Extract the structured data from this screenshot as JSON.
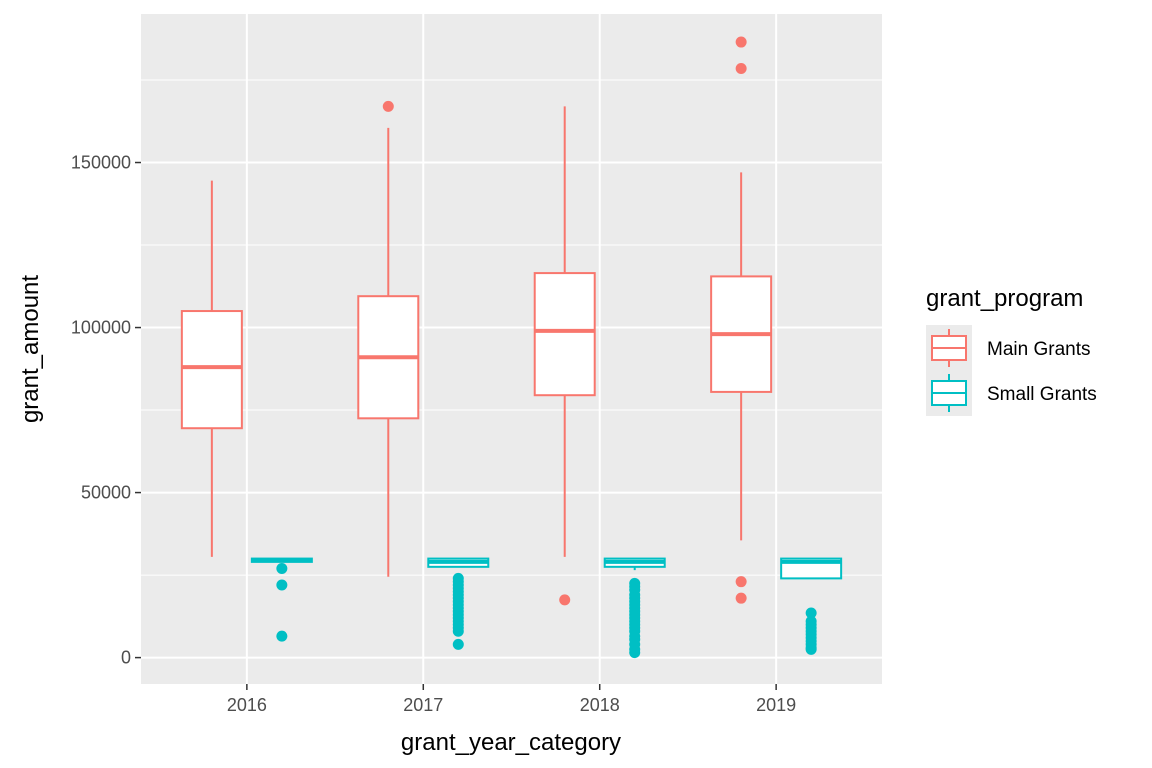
{
  "chart_data": {
    "type": "boxplot",
    "xlabel": "grant_year_category",
    "ylabel": "grant_amount",
    "categories": [
      "2016",
      "2017",
      "2018",
      "2019"
    ],
    "ylim": [
      -8000,
      195000
    ],
    "yticks": [
      0,
      50000,
      100000,
      150000
    ],
    "ytick_labels": [
      "0",
      "50000",
      "100000",
      "150000"
    ],
    "grid": true,
    "legend": {
      "title": "grant_program",
      "position": "right",
      "entries": [
        "Main Grants",
        "Small Grants"
      ]
    },
    "series": [
      {
        "name": "Main Grants",
        "color": "#F8766D",
        "boxes": [
          {
            "category": "2016",
            "whisker_low": 30500,
            "q1": 69500,
            "median": 88000,
            "q3": 105000,
            "whisker_high": 144500,
            "outliers": []
          },
          {
            "category": "2017",
            "whisker_low": 24500,
            "q1": 72500,
            "median": 91000,
            "q3": 109500,
            "whisker_high": 160500,
            "outliers": [
              167000
            ]
          },
          {
            "category": "2018",
            "whisker_low": 30500,
            "q1": 79500,
            "median": 99000,
            "q3": 116500,
            "whisker_high": 167000,
            "outliers": [
              17500
            ]
          },
          {
            "category": "2019",
            "whisker_low": 35500,
            "q1": 80500,
            "median": 98000,
            "q3": 115500,
            "whisker_high": 147000,
            "outliers": [
              186500,
              178500,
              23000,
              18000
            ]
          }
        ]
      },
      {
        "name": "Small Grants",
        "color": "#00BFC4",
        "boxes": [
          {
            "category": "2016",
            "whisker_low": 29000,
            "q1": 29000,
            "median": 29500,
            "q3": 30000,
            "whisker_high": 30000,
            "outliers": [
              27000,
              22000,
              6500
            ]
          },
          {
            "category": "2017",
            "whisker_low": 27500,
            "q1": 27500,
            "median": 29000,
            "q3": 30000,
            "whisker_high": 30000,
            "outliers": [
              24000,
              23000,
              22000,
              21000,
              20000,
              19000,
              18000,
              17000,
              16000,
              15000,
              14000,
              13000,
              12000,
              11000,
              10000,
              9000,
              8000,
              4000
            ]
          },
          {
            "category": "2018",
            "whisker_low": 26500,
            "q1": 27500,
            "median": 29000,
            "q3": 30000,
            "whisker_high": 30000,
            "outliers": [
              22500,
              21500,
              20500,
              19000,
              18000,
              17000,
              16000,
              15000,
              14000,
              13000,
              12000,
              11000,
              10000,
              9000,
              8000,
              6500,
              5500,
              4000,
              2500,
              1500
            ]
          },
          {
            "category": "2019",
            "whisker_low": 24000,
            "q1": 24000,
            "median": 29000,
            "q3": 30000,
            "whisker_high": 30000,
            "outliers": [
              13500,
              11000,
              10000,
              9000,
              8000,
              7000,
              6000,
              5000,
              4000,
              3000,
              2500
            ]
          }
        ]
      }
    ]
  }
}
